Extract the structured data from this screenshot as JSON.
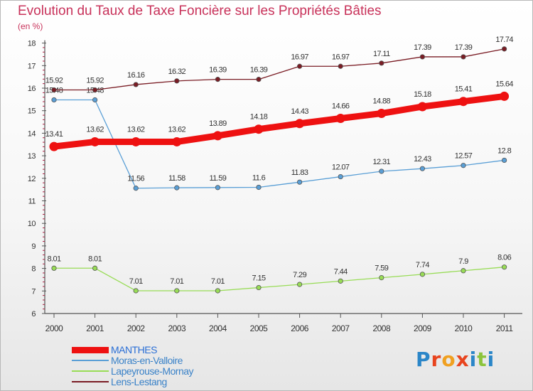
{
  "chart_data": {
    "type": "line",
    "title": "Evolution du Taux de Taxe Foncière sur les Propriétés Bâties",
    "ylabel": "(en %)",
    "xlabel": "",
    "x": [
      "2000",
      "2001",
      "2002",
      "2003",
      "2004",
      "2005",
      "2006",
      "2007",
      "2008",
      "2009",
      "2010",
      "2011"
    ],
    "ylim": [
      6,
      18
    ],
    "yticks": [
      "6",
      "7",
      "8",
      "9",
      "10",
      "11",
      "12",
      "13",
      "14",
      "15",
      "16",
      "17",
      "18"
    ],
    "grid": false,
    "legend_position": "bottom-left",
    "series": [
      {
        "name": "MANTHES",
        "color": "#ee1111",
        "emphasis": "thick",
        "values": [
          13.41,
          13.62,
          13.62,
          13.62,
          13.89,
          14.18,
          14.43,
          14.66,
          14.88,
          15.18,
          15.41,
          15.64
        ],
        "labels": [
          "13.41",
          "13.62",
          "13.62",
          "13.62",
          "13.89",
          "14.18",
          "14.43",
          "14.66",
          "14.88",
          "15.18",
          "15.41",
          "15.64"
        ]
      },
      {
        "name": "Moras-en-Valloire",
        "color": "#5a9fd6",
        "emphasis": "thin",
        "values": [
          15.48,
          15.48,
          11.56,
          11.58,
          11.59,
          11.6,
          11.83,
          12.07,
          12.31,
          12.43,
          12.57,
          12.8
        ],
        "labels": [
          "15.48",
          "15.48",
          "11.56",
          "11.58",
          "11.59",
          "11.6",
          "11.83",
          "12.07",
          "12.31",
          "12.43",
          "12.57",
          "12.8"
        ]
      },
      {
        "name": "Lapeyrouse-Mornay",
        "color": "#98dc56",
        "emphasis": "thin",
        "values": [
          8.01,
          8.01,
          7.01,
          7.01,
          7.01,
          7.15,
          7.29,
          7.44,
          7.59,
          7.74,
          7.9,
          8.06
        ],
        "labels": [
          "8.01",
          "8.01",
          "7.01",
          "7.01",
          "7.01",
          "7.15",
          "7.29",
          "7.44",
          "7.59",
          "7.74",
          "7.9",
          "8.06"
        ]
      },
      {
        "name": "Lens-Lestang",
        "color": "#7a1c24",
        "emphasis": "thin",
        "values": [
          15.92,
          15.92,
          16.16,
          16.32,
          16.39,
          16.39,
          16.97,
          16.97,
          17.11,
          17.39,
          17.39,
          17.74
        ],
        "labels": [
          "15.92",
          "15.92",
          "16.16",
          "16.32",
          "16.39",
          "16.39",
          "16.97",
          "16.97",
          "17.11",
          "17.39",
          "17.39",
          "17.74"
        ]
      }
    ]
  },
  "brand": {
    "letters": [
      "P",
      "r",
      "o",
      "x",
      "i",
      "t",
      "i"
    ],
    "colors": [
      "#2b86c8",
      "#e8441e",
      "#f0a020",
      "#e8441e",
      "#2b86c8",
      "#8cc43c",
      "#2b86c8"
    ]
  }
}
